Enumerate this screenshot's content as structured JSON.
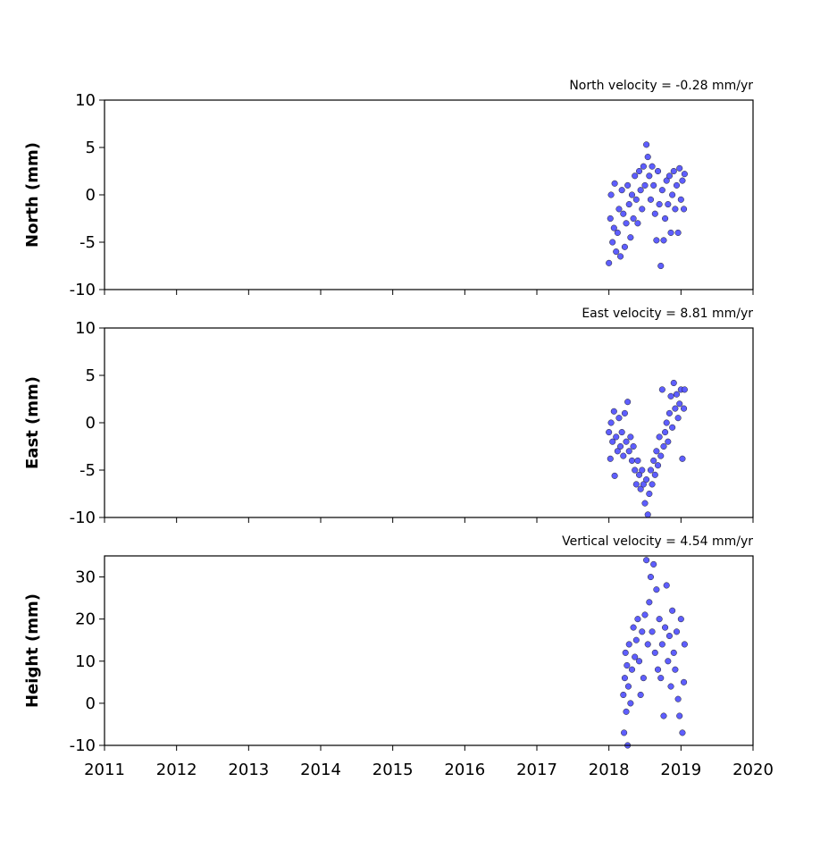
{
  "chart_data": [
    {
      "type": "scatter",
      "title": "North velocity = -0.28 mm/yr",
      "ylabel": "North (mm)",
      "color": "#5555ff",
      "xlim": [
        2011,
        2020
      ],
      "xticks": [
        2011,
        2012,
        2013,
        2014,
        2015,
        2016,
        2017,
        2018,
        2019,
        2020
      ],
      "xtick_labels": false,
      "ylim": [
        -10,
        10
      ],
      "yticks": [
        -10,
        -5,
        0,
        5,
        10
      ],
      "x": [
        2018.0,
        2018.02,
        2018.03,
        2018.05,
        2018.07,
        2018.08,
        2018.1,
        2018.12,
        2018.14,
        2018.16,
        2018.18,
        2018.2,
        2018.22,
        2018.24,
        2018.26,
        2018.28,
        2018.3,
        2018.32,
        2018.34,
        2018.36,
        2018.38,
        2018.4,
        2018.42,
        2018.44,
        2018.46,
        2018.48,
        2018.5,
        2018.52,
        2018.54,
        2018.56,
        2018.58,
        2018.6,
        2018.62,
        2018.64,
        2018.66,
        2018.68,
        2018.7,
        2018.72,
        2018.74,
        2018.76,
        2018.78,
        2018.8,
        2018.82,
        2018.84,
        2018.86,
        2018.88,
        2018.9,
        2018.92,
        2018.94,
        2018.96,
        2018.98,
        2019.0,
        2019.02,
        2019.04,
        2019.05
      ],
      "values": [
        -7.2,
        -2.5,
        0,
        -5,
        -3.5,
        1.2,
        -6,
        -4,
        -1.5,
        -6.5,
        0.5,
        -2,
        -5.5,
        -3,
        1,
        -1,
        -4.5,
        0,
        -2.5,
        2,
        -0.5,
        -3,
        2.5,
        0.5,
        -1.5,
        3,
        1,
        5.3,
        4,
        2,
        -0.5,
        3,
        1,
        -2,
        -4.8,
        2.5,
        -1,
        -7.5,
        0.5,
        -4.8,
        -2.5,
        1.5,
        -1,
        2,
        -4,
        0,
        2.5,
        -1.5,
        1,
        -4,
        2.8,
        -0.5,
        1.5,
        -1.5,
        2.2
      ]
    },
    {
      "type": "scatter",
      "title": "East velocity = 8.81 mm/yr",
      "ylabel": "East (mm)",
      "color": "#5555ff",
      "xlim": [
        2011,
        2020
      ],
      "xticks": [
        2011,
        2012,
        2013,
        2014,
        2015,
        2016,
        2017,
        2018,
        2019,
        2020
      ],
      "xtick_labels": false,
      "ylim": [
        -10,
        10
      ],
      "yticks": [
        -10,
        -5,
        0,
        5,
        10
      ],
      "x": [
        2018.0,
        2018.02,
        2018.03,
        2018.05,
        2018.07,
        2018.08,
        2018.1,
        2018.12,
        2018.14,
        2018.16,
        2018.18,
        2018.2,
        2018.22,
        2018.24,
        2018.26,
        2018.28,
        2018.3,
        2018.32,
        2018.34,
        2018.36,
        2018.38,
        2018.4,
        2018.42,
        2018.44,
        2018.46,
        2018.48,
        2018.5,
        2018.52,
        2018.54,
        2018.56,
        2018.58,
        2018.6,
        2018.62,
        2018.64,
        2018.66,
        2018.68,
        2018.7,
        2018.72,
        2018.74,
        2018.76,
        2018.78,
        2018.8,
        2018.82,
        2018.84,
        2018.86,
        2018.88,
        2018.9,
        2018.92,
        2018.94,
        2018.96,
        2018.98,
        2019.0,
        2019.02,
        2019.04,
        2019.05
      ],
      "values": [
        -1,
        -3.8,
        0,
        -2,
        1.2,
        -5.6,
        -1.5,
        -3,
        0.5,
        -2.5,
        -1,
        -3.5,
        1,
        -2,
        2.2,
        -3,
        -1.5,
        -4,
        -2.5,
        -5,
        -6.5,
        -4,
        -5.5,
        -7,
        -5,
        -6.5,
        -8.5,
        -6,
        -9.7,
        -7.5,
        -5,
        -6.5,
        -4,
        -5.5,
        -3,
        -4.5,
        -1.5,
        -3.5,
        3.5,
        -2.5,
        -1,
        0,
        -2,
        1,
        2.8,
        -0.5,
        4.2,
        1.5,
        3,
        0.5,
        2,
        3.5,
        -3.8,
        1.5,
        3.5
      ]
    },
    {
      "type": "scatter",
      "title": "Vertical velocity = 4.54 mm/yr",
      "ylabel": "Height (mm)",
      "color": "#5555ff",
      "xlim": [
        2011,
        2020
      ],
      "xticks": [
        2011,
        2012,
        2013,
        2014,
        2015,
        2016,
        2017,
        2018,
        2019,
        2020
      ],
      "xtick_labels": true,
      "ylim": [
        -10,
        35
      ],
      "yticks": [
        -10,
        0,
        10,
        20,
        30
      ],
      "x": [
        2018.2,
        2018.21,
        2018.22,
        2018.23,
        2018.24,
        2018.25,
        2018.26,
        2018.27,
        2018.28,
        2018.3,
        2018.32,
        2018.34,
        2018.36,
        2018.38,
        2018.4,
        2018.42,
        2018.44,
        2018.46,
        2018.48,
        2018.5,
        2018.52,
        2018.54,
        2018.56,
        2018.58,
        2018.6,
        2018.62,
        2018.64,
        2018.66,
        2018.68,
        2018.7,
        2018.72,
        2018.74,
        2018.76,
        2018.78,
        2018.8,
        2018.82,
        2018.84,
        2018.86,
        2018.88,
        2018.9,
        2018.92,
        2018.94,
        2018.96,
        2018.98,
        2019.0,
        2019.02,
        2019.04,
        2019.05
      ],
      "values": [
        2,
        -7,
        6,
        12,
        -2,
        9,
        -10,
        4,
        14,
        0,
        8,
        18,
        11,
        15,
        20,
        10,
        2,
        17,
        6,
        21,
        34,
        14,
        24,
        30,
        17,
        33,
        12,
        27,
        8,
        20,
        6,
        14,
        -3,
        18,
        28,
        10,
        16,
        4,
        22,
        12,
        8,
        17,
        1,
        -3,
        20,
        -7,
        5,
        14
      ]
    }
  ]
}
